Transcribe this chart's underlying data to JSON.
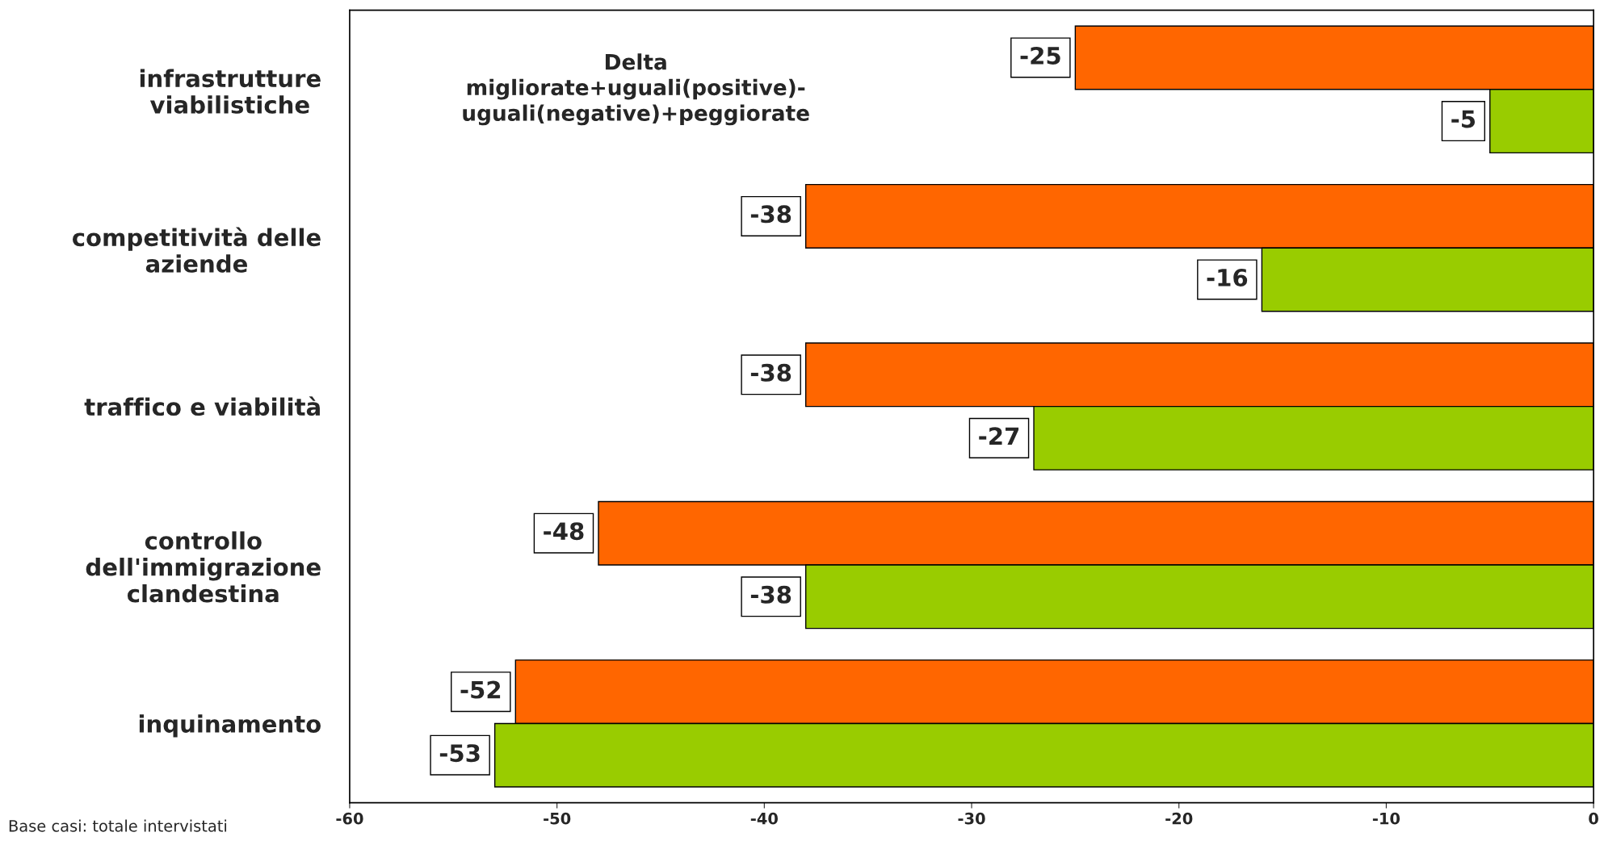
{
  "chart_data": {
    "type": "bar",
    "orientation": "horizontal",
    "categories": [
      "infrastrutture\nviabilistiche",
      "competitività delle\naziende",
      "traffico e viabilità",
      "controllo\ndell'immigrazione\nclandestina",
      "inquinamento"
    ],
    "series": [
      {
        "color": "#ff6600",
        "values": [
          -25,
          -38,
          -38,
          -48,
          -52
        ]
      },
      {
        "color": "#99cc00",
        "values": [
          -5,
          -16,
          -27,
          -38,
          -53
        ]
      }
    ],
    "xlim": [
      -60,
      0
    ],
    "xticks": [
      -60,
      -50,
      -40,
      -30,
      -20,
      -10,
      0
    ],
    "data_labels": true,
    "grid": false,
    "legend": false,
    "annotations": [
      "Delta\nmigliorate+uguali(positive)-\nuguali(negative)+peggiorate",
      "Base casi: totale intervistati"
    ]
  }
}
